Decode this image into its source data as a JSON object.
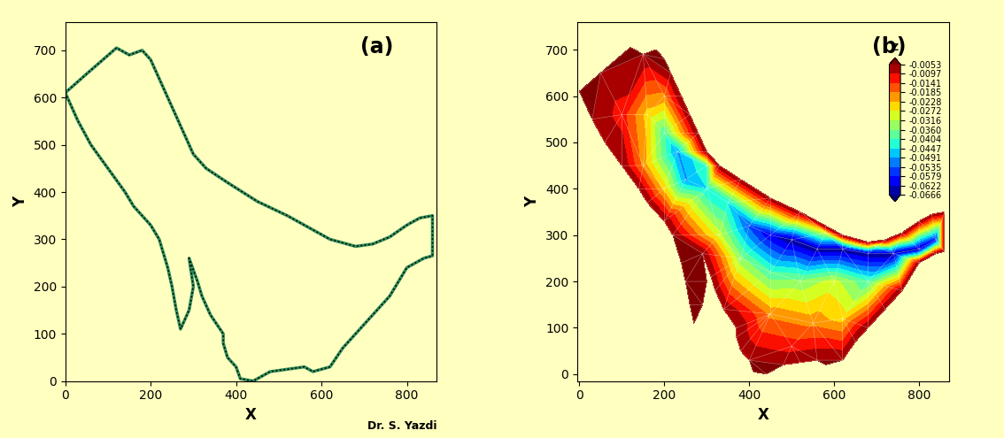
{
  "chart_data": [
    {
      "type": "line",
      "title": "(a)",
      "xlabel": "X",
      "ylabel": "Y",
      "annotation": "Dr. S. Yazdi",
      "color": "#2e8b57",
      "line_style": "dotted",
      "x": [
        0,
        50,
        120,
        150,
        180,
        200,
        215,
        240,
        260,
        280,
        300,
        330,
        380,
        450,
        520,
        580,
        620,
        680,
        720,
        760,
        800,
        830,
        860,
        860,
        840,
        800,
        760,
        720,
        680,
        650,
        620,
        580,
        560,
        520,
        480,
        440,
        410,
        400,
        380,
        370,
        370,
        340,
        320,
        310,
        290,
        300,
        290,
        270,
        260,
        250,
        240,
        220,
        200,
        160,
        140,
        100,
        60,
        30,
        0
      ],
      "y": [
        610,
        650,
        705,
        690,
        700,
        680,
        650,
        600,
        560,
        520,
        480,
        450,
        420,
        380,
        350,
        320,
        300,
        285,
        290,
        305,
        330,
        345,
        350,
        265,
        260,
        240,
        180,
        140,
        100,
        70,
        30,
        20,
        30,
        25,
        20,
        0,
        5,
        30,
        50,
        80,
        100,
        140,
        180,
        210,
        260,
        200,
        150,
        110,
        150,
        200,
        240,
        300,
        330,
        370,
        400,
        450,
        500,
        550,
        610
      ],
      "xlim": [
        0,
        870
      ],
      "ylim": [
        0,
        760
      ],
      "xticks": [
        0,
        200,
        400,
        600,
        800
      ],
      "yticks": [
        0,
        100,
        200,
        300,
        400,
        500,
        600,
        700
      ]
    },
    {
      "type": "contour",
      "title": "(b)",
      "xlabel": "X",
      "ylabel": "Y",
      "x": [
        0,
        50,
        120,
        150,
        180,
        200,
        215,
        240,
        260,
        280,
        300,
        330,
        380,
        450,
        520,
        580,
        620,
        680,
        720,
        760,
        800,
        830,
        860,
        860,
        840,
        800,
        760,
        720,
        680,
        650,
        620,
        580,
        560,
        520,
        480,
        440,
        410,
        400,
        380,
        370,
        370,
        340,
        320,
        310,
        290,
        300,
        290,
        270,
        260,
        250,
        240,
        220,
        200,
        160,
        140,
        100,
        60,
        30,
        0
      ],
      "y": [
        610,
        650,
        705,
        690,
        700,
        680,
        650,
        600,
        560,
        520,
        480,
        450,
        420,
        380,
        350,
        320,
        300,
        285,
        290,
        305,
        330,
        345,
        350,
        265,
        260,
        240,
        180,
        140,
        100,
        70,
        30,
        20,
        30,
        25,
        20,
        0,
        5,
        30,
        50,
        80,
        100,
        140,
        180,
        210,
        260,
        200,
        150,
        110,
        150,
        200,
        240,
        300,
        330,
        370,
        400,
        450,
        500,
        550,
        610
      ],
      "edge_z": -0.0053,
      "points": {
        "x": [
          100,
          160,
          200,
          230,
          250,
          300,
          350,
          400,
          450,
          500,
          560,
          620,
          680,
          740,
          800,
          840,
          380,
          450,
          520,
          600,
          680,
          450,
          550,
          620,
          500,
          200,
          150,
          330,
          580,
          700,
          200,
          300
        ],
        "y": [
          560,
          560,
          520,
          480,
          420,
          400,
          370,
          320,
          300,
          290,
          270,
          270,
          260,
          260,
          270,
          290,
          250,
          220,
          200,
          200,
          200,
          130,
          110,
          120,
          60,
          400,
          450,
          300,
          305,
          275,
          600,
          450
        ],
        "z": [
          -0.012,
          -0.025,
          -0.04,
          -0.05,
          -0.05,
          -0.045,
          -0.045,
          -0.055,
          -0.062,
          -0.066,
          -0.066,
          -0.066,
          -0.066,
          -0.066,
          -0.066,
          -0.06,
          -0.035,
          -0.04,
          -0.035,
          -0.03,
          -0.04,
          -0.02,
          -0.02,
          -0.025,
          -0.012,
          -0.025,
          -0.02,
          -0.03,
          -0.03,
          -0.04,
          -0.02,
          -0.04
        ]
      },
      "colorbar": {
        "label": "Z",
        "levels": [
          -0.0666,
          -0.0622,
          -0.0579,
          -0.0535,
          -0.0491,
          -0.0447,
          -0.0404,
          -0.036,
          -0.0316,
          -0.0272,
          -0.0228,
          -0.0185,
          -0.0141,
          -0.0097,
          -0.0053
        ],
        "ticks": [
          -0.0666,
          -0.0622,
          -0.0579,
          -0.0535,
          -0.0491,
          -0.0447,
          -0.0404,
          {
            "value": -0.036,
            "label": "-0.0360"
          },
          -0.0316,
          -0.0272,
          -0.0228,
          -0.0185,
          -0.0141,
          -0.0097,
          -0.0053
        ]
      },
      "xlim": [
        -5,
        870
      ],
      "ylim": [
        -15,
        760
      ],
      "xticks": [
        0,
        200,
        400,
        600,
        800
      ],
      "yticks": [
        0,
        100,
        200,
        300,
        400,
        500,
        600,
        700
      ]
    }
  ]
}
